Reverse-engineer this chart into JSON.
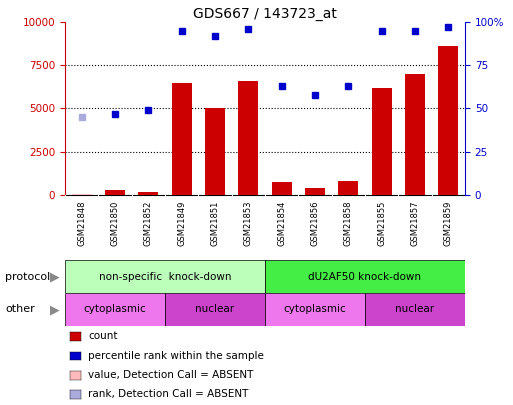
{
  "title": "GDS667 / 143723_at",
  "samples": [
    "GSM21848",
    "GSM21850",
    "GSM21852",
    "GSM21849",
    "GSM21851",
    "GSM21853",
    "GSM21854",
    "GSM21856",
    "GSM21858",
    "GSM21855",
    "GSM21857",
    "GSM21859"
  ],
  "count_values": [
    50,
    300,
    150,
    6500,
    5000,
    6600,
    750,
    400,
    800,
    6200,
    7000,
    8600
  ],
  "count_absent": [
    true,
    false,
    false,
    false,
    false,
    false,
    false,
    false,
    false,
    false,
    false,
    false
  ],
  "rank_values": [
    45,
    47,
    49,
    95,
    92,
    96,
    63,
    58,
    63,
    95,
    95,
    97
  ],
  "rank_absent": [
    true,
    false,
    false,
    false,
    false,
    false,
    false,
    false,
    false,
    false,
    false,
    false
  ],
  "ylim_left": [
    0,
    10000
  ],
  "ylim_right": [
    0,
    100
  ],
  "yticks_left": [
    0,
    2500,
    5000,
    7500,
    10000
  ],
  "yticks_right": [
    0,
    25,
    50,
    75,
    100
  ],
  "left_tick_labels": [
    "0",
    "2500",
    "5000",
    "7500",
    "10000"
  ],
  "right_tick_labels": [
    "0",
    "25",
    "50",
    "75",
    "100%"
  ],
  "bar_color": "#cc0000",
  "bar_absent_color": "#ffbbbb",
  "dot_color": "#0000cc",
  "dot_absent_color": "#aaaadd",
  "protocol_groups": [
    {
      "label": "non-specific  knock-down",
      "start": 0,
      "end": 6,
      "color": "#bbffbb"
    },
    {
      "label": "dU2AF50 knock-down",
      "start": 6,
      "end": 12,
      "color": "#44ee44"
    }
  ],
  "other_groups": [
    {
      "label": "cytoplasmic",
      "start": 0,
      "end": 3,
      "color": "#ee77ee"
    },
    {
      "label": "nuclear",
      "start": 3,
      "end": 6,
      "color": "#cc44cc"
    },
    {
      "label": "cytoplasmic",
      "start": 6,
      "end": 9,
      "color": "#ee77ee"
    },
    {
      "label": "nuclear",
      "start": 9,
      "end": 12,
      "color": "#cc44cc"
    }
  ],
  "legend_items": [
    {
      "label": "count",
      "color": "#cc0000"
    },
    {
      "label": "percentile rank within the sample",
      "color": "#0000cc"
    },
    {
      "label": "value, Detection Call = ABSENT",
      "color": "#ffbbbb"
    },
    {
      "label": "rank, Detection Call = ABSENT",
      "color": "#aaaadd"
    }
  ],
  "xlabel_protocol": "protocol",
  "xlabel_other": "other",
  "background_color": "#ffffff"
}
